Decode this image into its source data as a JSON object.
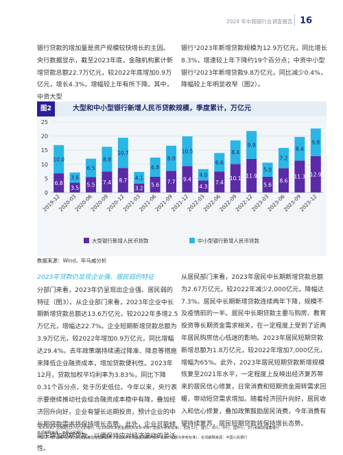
{
  "header": {
    "report_title": "2024 年中国银行业调查报告",
    "page_number": "16"
  },
  "top_left": "银行贷款的增加量是资产规模较快增长的主因。央行数据显示，截至2023年底，金融机构累计新增贷款总额22.7万亿元，较2022年底增加0.9万亿元，增长4.3%，增幅较上年有所下降。其中，中资大型",
  "top_right": "银行¹2023年新增贷款规模为12.9万亿元，同比增长8.3%，增速较上年下降约19个百分点；中资中小型银行²2023年新增贷款9.8万亿元，同比减少0.4%，降幅较上年明显收窄（图2）。",
  "figure": {
    "tag": "图2",
    "title": "大型和中小型银行新增人民币贷款规模，季度累计，万亿元",
    "source": "数据来源：Wind，毕马威分析"
  },
  "chart_data": {
    "type": "bar",
    "categories": [
      "2019-12",
      "2020-03",
      "2020-06",
      "2020-09",
      "2020-12",
      "2021-03",
      "2021-06",
      "2021-09",
      "2021-12",
      "2022-03",
      "2022-06",
      "2022-09",
      "2022-12",
      "2023-03",
      "2023-06",
      "2023-09",
      "2023-12"
    ],
    "series": [
      {
        "name": "大型银行新增人民币贷款",
        "values": [
          6.8,
          3.5,
          5.5,
          7.4,
          8.7,
          3.2,
          5.6,
          7.7,
          9.4,
          4.3,
          7.4,
          10.1,
          11.9,
          5.6,
          8.6,
          11.3,
          12.9
        ],
        "color": "#5b2aa8"
      },
      {
        "name": "中小型银行新增人民币贷款",
        "values": [
          10.0,
          3.6,
          6.5,
          8.8,
          10.7,
          4.1,
          6.8,
          8.9,
          10.5,
          4.0,
          6.6,
          8.4,
          9.9,
          5.0,
          7.2,
          8.4,
          9.8
        ],
        "color": "#2ab7e6"
      }
    ],
    "ylim": [
      0,
      25
    ],
    "yticks": [
      0,
      5,
      10,
      15,
      20,
      25
    ],
    "stacked": true,
    "grid": true,
    "legend_position": "bottom"
  },
  "section_heading": "2023年贷款仍显现企业强、居民弱的特征",
  "left_body": "分部门来看，2023年仍呈现出企业强、居民弱的特征（图3）。从企业部门来看，2023年企业中长期新增贷款总额达13.6万亿元，较2022年多增2.5万亿元，增幅达22.7%。企业短期新增贷款总额为3.9万亿元，较2022年增加0.9万亿元，同比增幅达29.4%。去年政策端持续通过降准、降息等措施来降低企业融资成本，增加贷款便利性。2023年12月，贷款加权平均利率为3.83%，同比下降0.31个百分点，处于历史低位。今年以来，央行表示要继续推动社会综合融资成本稳中有降，叠加经济回升向好，企业有望长远期投资，预计企业的中长期贷款需求将保持增长态势。此外，企业可能倾向于增加短期贷款，以便保持应对经济波动的灵活性。",
  "right_body": "从居民部门来看，2023年居民中长期新增贷款总额为2.67万亿元，较2022年减少2,000亿元，降幅达7.3%。居民中长期新增贷款连续两年下降，规模不及疫情前的一半。居民中长期贷款主要与购房、教育投资等长期资金需求相关，在一定程度上受到了近两年居民购房信心低迷的影响。2023年居民短期贷款新增总额为1.8万亿元，较2022年增加7,000亿元，增幅为65%。此外，2023年居民短期贷款新增规模恢复至2021年水平，一定程度上反映出经济复苏带来的居民信心修复，日常消费和短期资金周转需求回暖，带动短贷需求增加。随着经济回升向好，居民收入和信心修复，叠加政策鼓励居民消费，今年消费有望持续复苏，居民短期贷款将保持增长态势。",
  "footnotes": [
    "¹本币币资产总额超过2万亿元的银行（以2008年末各金融机构本外币资产总额为参考标准），包括工行、建行、农行、中行、国开行、交行和邮政储蓄银行",
    "名词解释来源：中国人民银行",
    "²本外币资产总额小于2万亿元且跨省经营的银行（以2008年末各金融机构本外币资产总额为参考标准）。名词解释来源：中国人民银行"
  ]
}
